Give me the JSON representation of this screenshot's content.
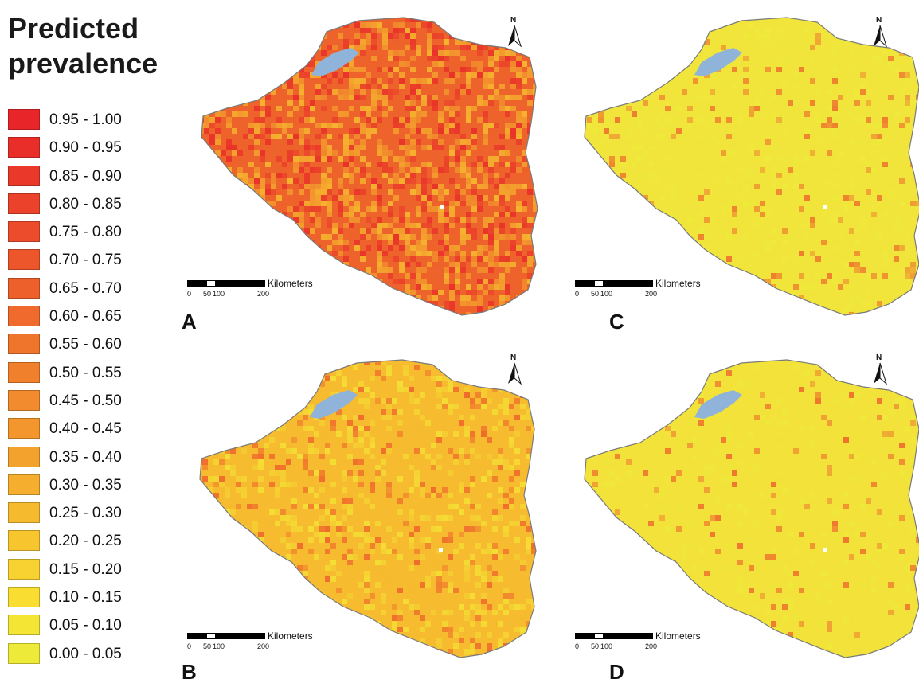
{
  "legend": {
    "title_line1": "Predicted",
    "title_line2": "prevalence",
    "items": [
      {
        "label": "0.95 - 1.00",
        "color": "#e8262a"
      },
      {
        "label": "0.90 - 0.95",
        "color": "#e92e2a"
      },
      {
        "label": "0.85 - 0.90",
        "color": "#ea382a"
      },
      {
        "label": "0.80 - 0.85",
        "color": "#eb422b"
      },
      {
        "label": "0.75 - 0.80",
        "color": "#ec4c2b"
      },
      {
        "label": "0.70 - 0.75",
        "color": "#ed562b"
      },
      {
        "label": "0.65 - 0.70",
        "color": "#ee602b"
      },
      {
        "label": "0.60 - 0.65",
        "color": "#ef6a2c"
      },
      {
        "label": "0.55 - 0.60",
        "color": "#f0752c"
      },
      {
        "label": "0.50 - 0.55",
        "color": "#f1802c"
      },
      {
        "label": "0.45 - 0.50",
        "color": "#f28b2d"
      },
      {
        "label": "0.40 - 0.45",
        "color": "#f3962d"
      },
      {
        "label": "0.35 - 0.40",
        "color": "#f4a22e"
      },
      {
        "label": "0.30 - 0.35",
        "color": "#f5ae2e"
      },
      {
        "label": "0.25 - 0.30",
        "color": "#f6ba2f"
      },
      {
        "label": "0.20 - 0.25",
        "color": "#f7c62f"
      },
      {
        "label": "0.15 - 0.20",
        "color": "#f8d230"
      },
      {
        "label": "0.10 - 0.15",
        "color": "#f9de31"
      },
      {
        "label": "0.05 - 0.10",
        "color": "#f4e535"
      },
      {
        "label": "0.00 - 0.05",
        "color": "#eeea3a"
      }
    ]
  },
  "panels": {
    "A": {
      "letter": "A",
      "base_color": "#ee632b",
      "hot_color": "#e8262a",
      "cool_color": "#f7c62f",
      "coverage": 0.5
    },
    "B": {
      "letter": "B",
      "base_color": "#f6bb2f",
      "hot_color": "#ee5a2b",
      "cool_color": "#f4e535",
      "coverage": 0.3
    },
    "C": {
      "letter": "C",
      "base_color": "#f1e53b",
      "hot_color": "#ee632b",
      "cool_color": "#eeea3a",
      "coverage": 0.2
    },
    "D": {
      "letter": "D",
      "base_color": "#f2e23a",
      "hot_color": "#ee5a2b",
      "cool_color": "#eeea3a",
      "coverage": 0.15
    }
  },
  "water_color": "#8fb3d9",
  "scale": {
    "unit": "Kilometers",
    "ticks": [
      "0",
      "50",
      "100",
      "200"
    ]
  },
  "north_label": "N"
}
